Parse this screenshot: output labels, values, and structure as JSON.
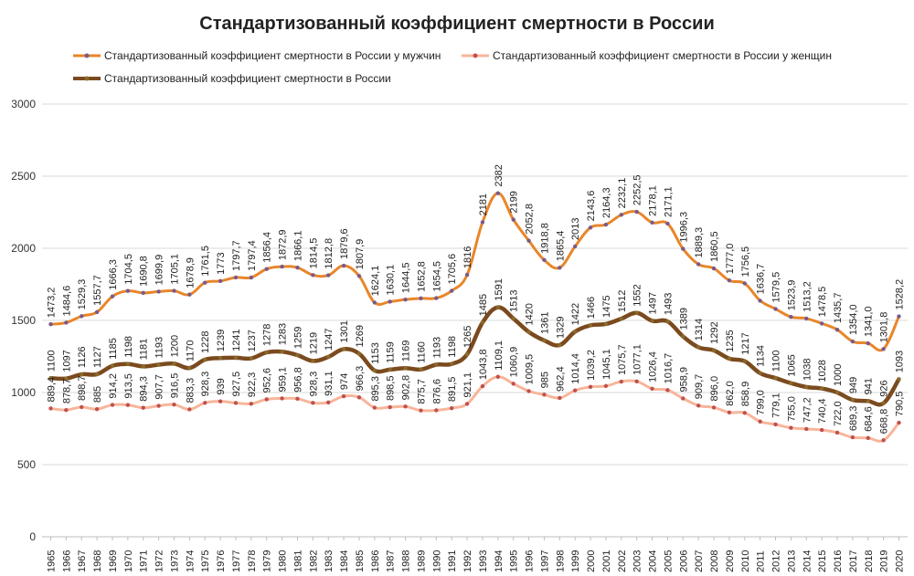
{
  "chart_data": {
    "type": "line",
    "title": "Стандартизованный коэффициент смертности в России",
    "xlabel": "",
    "ylabel": "",
    "ylim": [
      0,
      3000
    ],
    "yticks": [
      "0",
      "500",
      "1000",
      "1500",
      "2000",
      "2500",
      "3000"
    ],
    "grid": true,
    "legend_position": "top",
    "categories": [
      "1965",
      "1966",
      "1967",
      "1968",
      "1969",
      "1970",
      "1971",
      "1972",
      "1973",
      "1974",
      "1975",
      "1976",
      "1977",
      "1978",
      "1979",
      "1980",
      "1981",
      "1982",
      "1983",
      "1984",
      "1985",
      "1986",
      "1987",
      "1988",
      "1989",
      "1990",
      "1991",
      "1992",
      "1993",
      "1994",
      "1995",
      "1996",
      "1997",
      "1998",
      "1999",
      "2000",
      "2001",
      "2002",
      "2003",
      "2004",
      "2005",
      "2006",
      "2007",
      "2008",
      "2009",
      "2010",
      "2011",
      "2012",
      "2013",
      "2014",
      "2015",
      "2016",
      "2017",
      "2018",
      "2019",
      "2020"
    ],
    "series": [
      {
        "name": "Стандартизованный коэффициент смертности в России у мужчин",
        "color": "#e8862a",
        "marker": "#7a5a8c",
        "values": [
          1473.2,
          1484.6,
          1529.3,
          1557.7,
          1666.3,
          1704.5,
          1690.8,
          1699.9,
          1705.1,
          1678.9,
          1761.5,
          1773,
          1797.7,
          1797.4,
          1856.4,
          1872.9,
          1866.1,
          1814.5,
          1812.8,
          1879.6,
          1807.9,
          1624.1,
          1630.1,
          1644.5,
          1652.8,
          1654.5,
          1705.6,
          1816,
          2181,
          2382,
          2199,
          2052.8,
          1918.8,
          1865.4,
          2013,
          2143.6,
          2164.3,
          2232.1,
          2252.5,
          2178.1,
          2171.1,
          1996.3,
          1889.3,
          1860.5,
          1777.0,
          1756.5,
          1636.7,
          1579.5,
          1523.9,
          1513.2,
          1478.5,
          1435.7,
          1354.0,
          1341.0,
          1301.8,
          1528.2
        ],
        "labels": [
          "1473,2",
          "1484,6",
          "1529,3",
          "1557,7",
          "1666,3",
          "1704,5",
          "1690,8",
          "1699,9",
          "1705,1",
          "1678,9",
          "1761,5",
          "1773",
          "1797,7",
          "1797,4",
          "1856,4",
          "1872,9",
          "1866,1",
          "1814,5",
          "1812,8",
          "1879,6",
          "1807,9",
          "1624,1",
          "1630,1",
          "1644,5",
          "1652,8",
          "1654,5",
          "1705,6",
          "1816",
          "2181",
          "2382",
          "2199",
          "2052,8",
          "1918,8",
          "1865,4",
          "2013",
          "2143,6",
          "2164,3",
          "2232,1",
          "2252,5",
          "2178,1",
          "2171,1",
          "1996,3",
          "1889,3",
          "1860,5",
          "1777,0",
          "1756,5",
          "1636,7",
          "1579,5",
          "1523,9",
          "1513,2",
          "1478,5",
          "1435,7",
          "1354,0",
          "1341,0",
          "1301,8",
          "1528,2"
        ]
      },
      {
        "name": "Стандартизованный коэффициент смертности в России у женщин",
        "color": "#f7b59a",
        "marker": "#c0504d",
        "values": [
          889.4,
          878.7,
          898.7,
          885,
          914.2,
          913.5,
          894.3,
          907.7,
          916.5,
          883.3,
          928.3,
          939,
          927.5,
          922.3,
          952.6,
          959.1,
          956.8,
          928.3,
          931.1,
          974,
          966.3,
          895.3,
          898.5,
          902.8,
          875.7,
          876.6,
          891.5,
          921.1,
          1043.8,
          1109.1,
          1060.9,
          1009.5,
          985,
          962.4,
          1014.4,
          1039.2,
          1045.1,
          1075.7,
          1077.1,
          1026.4,
          1016.7,
          958.9,
          909.7,
          896.0,
          862.0,
          858.9,
          799.0,
          779.1,
          755.0,
          747.2,
          740.4,
          722.0,
          689.3,
          684.6,
          668.8,
          790.5
        ],
        "labels": [
          "889,4",
          "878,7",
          "898,7",
          "885",
          "914,2",
          "913,5",
          "894,3",
          "907,7",
          "916,5",
          "883,3",
          "928,3",
          "939",
          "927,5",
          "922,3",
          "952,6",
          "959,1",
          "956,8",
          "928,3",
          "931,1",
          "974",
          "966,3",
          "895,3",
          "898,5",
          "902,8",
          "875,7",
          "876,6",
          "891,5",
          "921,1",
          "1043,8",
          "1109,1",
          "1060,9",
          "1009,5",
          "985",
          "962,4",
          "1014,4",
          "1039,2",
          "1045,1",
          "1075,7",
          "1077,1",
          "1026,4",
          "1016,7",
          "958,9",
          "909,7",
          "896,0",
          "862,0",
          "858,9",
          "799,0",
          "779,1",
          "755,0",
          "747,2",
          "740,4",
          "722,0",
          "689,3",
          "684,6",
          "668,8",
          "790,5"
        ]
      },
      {
        "name": "Стандартизованный коэффициент смертности в России",
        "color": "#7b4a1e",
        "marker": "#8a6a2a",
        "values": [
          1100,
          1097,
          1126,
          1127,
          1185,
          1198,
          1181,
          1193,
          1200,
          1170,
          1228,
          1239,
          1241,
          1237,
          1278,
          1283,
          1259,
          1219,
          1247,
          1301,
          1269,
          1153,
          1159,
          1169,
          1160,
          1193,
          1198,
          1265,
          1485,
          1591,
          1513,
          1420,
          1361,
          1329,
          1422,
          1466,
          1475,
          1512,
          1552,
          1497,
          1493,
          1389,
          1314,
          1292,
          1235,
          1217,
          1134,
          1100,
          1065,
          1038,
          1028,
          1000,
          949,
          941,
          926,
          1093
        ],
        "labels": [
          "1100",
          "1097",
          "1126",
          "1127",
          "1185",
          "1198",
          "1181",
          "1193",
          "1200",
          "1170",
          "1228",
          "1239",
          "1241",
          "1237",
          "1278",
          "1283",
          "1259",
          "1219",
          "1247",
          "1301",
          "1269",
          "1153",
          "1159",
          "1169",
          "1160",
          "1193",
          "1198",
          "1265",
          "1485",
          "1591",
          "1513",
          "1420",
          "1361",
          "1329",
          "1422",
          "1466",
          "1475",
          "1512",
          "1552",
          "1497",
          "1493",
          "1389",
          "1314",
          "1292",
          "1235",
          "1217",
          "1134",
          "1100",
          "1065",
          "1038",
          "1028",
          "1000",
          "949",
          "941",
          "926",
          "1093"
        ]
      }
    ]
  }
}
